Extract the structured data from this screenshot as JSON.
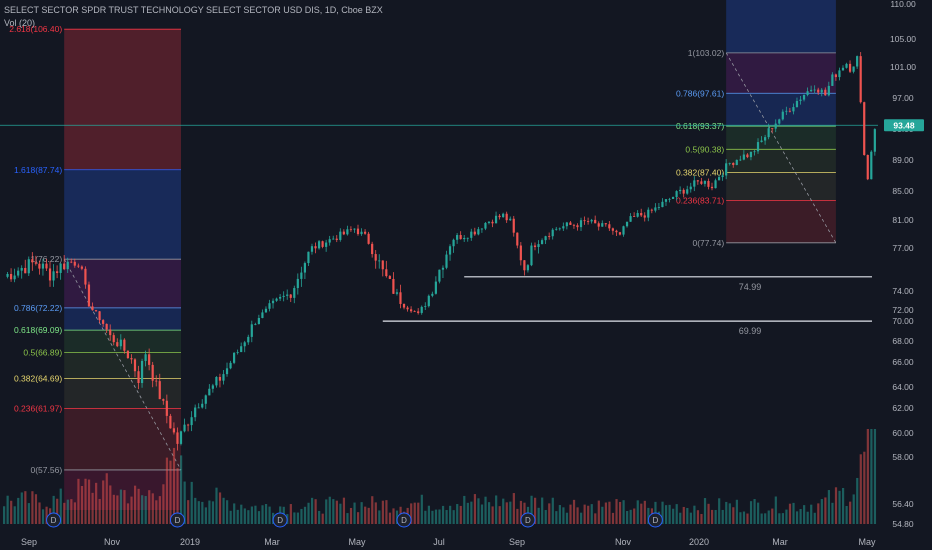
{
  "header": {
    "title": "SELECT SECTOR SPDR TRUST TECHNOLOGY SELECT SECTOR USD DIS, 1D, Cboe BZX",
    "volume_label": "Vol (20)"
  },
  "colors": {
    "background": "#131722",
    "up": "#26a69a",
    "down": "#ef5350",
    "axis_text": "#b2b5be",
    "price_line": "#26a69a"
  },
  "last_price_label": "93.48",
  "chart_data": {
    "type": "candlestick",
    "x_tick_labels": [
      "Sep",
      "Nov",
      "2019",
      "Mar",
      "May",
      "Jul",
      "Sep",
      "Nov",
      "2020",
      "Mar",
      "May"
    ],
    "y_tick_labels": [
      "110.00",
      "105.00",
      "101.00",
      "97.00",
      "93.00",
      "89.00",
      "85.00",
      "81.00",
      "77.00",
      "74.00",
      "72.00",
      "70.00",
      "68.00",
      "66.00",
      "64.00",
      "62.00",
      "60.00",
      "58.00",
      "56.40",
      "54.80"
    ],
    "y_ticks": [
      110,
      105,
      101,
      97,
      93,
      89,
      85,
      81,
      77,
      74,
      72,
      70,
      68,
      66,
      64,
      62,
      60,
      58,
      56.4,
      54.8
    ],
    "close_path": [
      [
        0,
        75.0
      ],
      [
        5,
        75.6
      ],
      [
        9,
        76.0
      ],
      [
        13,
        75.2
      ],
      [
        17,
        75.9
      ],
      [
        21,
        76.2
      ],
      [
        24,
        72.8
      ],
      [
        27,
        70.5
      ],
      [
        30,
        68.4
      ],
      [
        33,
        67.6
      ],
      [
        36,
        66.2
      ],
      [
        38,
        64.7
      ],
      [
        40,
        66.9
      ],
      [
        43,
        64.0
      ],
      [
        46,
        61.4
      ],
      [
        49,
        59.2
      ],
      [
        51,
        60.5
      ],
      [
        54,
        62.1
      ],
      [
        57,
        63.3
      ],
      [
        60,
        64.3
      ],
      [
        63,
        65.5
      ],
      [
        66,
        67.0
      ],
      [
        69,
        68.7
      ],
      [
        72,
        70.8
      ],
      [
        75,
        72.2
      ],
      [
        78,
        73.1
      ],
      [
        81,
        73.8
      ],
      [
        84,
        75.6
      ],
      [
        87,
        77.0
      ],
      [
        90,
        77.7
      ],
      [
        93,
        78.4
      ],
      [
        96,
        79.0
      ],
      [
        99,
        79.8
      ],
      [
        102,
        78.6
      ],
      [
        104,
        77.1
      ],
      [
        107,
        75.3
      ],
      [
        110,
        74.0
      ],
      [
        112,
        73.0
      ],
      [
        115,
        72.3
      ],
      [
        117,
        71.1
      ],
      [
        119,
        72.8
      ],
      [
        122,
        74.9
      ],
      [
        125,
        76.7
      ],
      [
        127,
        78.4
      ],
      [
        130,
        78.8
      ],
      [
        133,
        79.4
      ],
      [
        136,
        80.6
      ],
      [
        139,
        81.3
      ],
      [
        141,
        81.6
      ],
      [
        143,
        80.7
      ],
      [
        145,
        77.2
      ],
      [
        147,
        75.6
      ],
      [
        150,
        77.6
      ],
      [
        153,
        78.9
      ],
      [
        156,
        79.8
      ],
      [
        159,
        80.2
      ],
      [
        162,
        80.4
      ],
      [
        165,
        80.8
      ],
      [
        168,
        80.1
      ],
      [
        171,
        79.9
      ],
      [
        174,
        78.6
      ],
      [
        176,
        80.7
      ],
      [
        179,
        81.6
      ],
      [
        182,
        81.9
      ],
      [
        185,
        82.9
      ],
      [
        188,
        83.9
      ],
      [
        191,
        84.9
      ],
      [
        194,
        85.6
      ],
      [
        197,
        86.3
      ],
      [
        200,
        85.7
      ],
      [
        202,
        87.0
      ],
      [
        205,
        88.6
      ],
      [
        208,
        89.4
      ],
      [
        211,
        89.8
      ],
      [
        214,
        91.4
      ],
      [
        217,
        93.4
      ],
      [
        220,
        94.8
      ],
      [
        223,
        96.2
      ],
      [
        226,
        97.5
      ],
      [
        229,
        98.6
      ],
      [
        232,
        97.4
      ],
      [
        234,
        99.6
      ],
      [
        237,
        101.2
      ],
      [
        240,
        102.3
      ],
      [
        241,
        101.8
      ],
      [
        242,
        95.3
      ],
      [
        243,
        91.2
      ],
      [
        244,
        86.4
      ],
      [
        245,
        90.8
      ],
      [
        246,
        93.5
      ]
    ],
    "volume_profile": [
      [
        0,
        0.3
      ],
      [
        15,
        0.3
      ],
      [
        25,
        0.5
      ],
      [
        40,
        0.35
      ],
      [
        49,
        0.75
      ],
      [
        53,
        0.4
      ],
      [
        70,
        0.22
      ],
      [
        130,
        0.28
      ],
      [
        145,
        0.3
      ],
      [
        175,
        0.22
      ],
      [
        230,
        0.25
      ],
      [
        240,
        0.45
      ],
      [
        244,
        1.0
      ],
      [
        246,
        0.9
      ]
    ],
    "dividend_marker": "D",
    "dividends_x": [
      14,
      49,
      78,
      113,
      148,
      184
    ],
    "fib_retracements": [
      {
        "x_start": 17,
        "x_end": 50,
        "levels": [
          {
            "label": "2.618(106.40)",
            "value": 106.4,
            "color": "#f23645"
          },
          {
            "label": "1.618(87.74)",
            "value": 87.74,
            "color": "#2962ff"
          },
          {
            "label": "1(76.22)",
            "value": 76.22,
            "color": "#9598a1"
          },
          {
            "label": "0.786(72.22)",
            "value": 72.22,
            "color": "#5b9cf6"
          },
          {
            "label": "0.618(69.09)",
            "value": 69.09,
            "color": "#7ee787"
          },
          {
            "label": "0.5(66.89)",
            "value": 66.89,
            "color": "#8bc34a"
          },
          {
            "label": "0.382(64.69)",
            "value": 64.69,
            "color": "#e6d66e"
          },
          {
            "label": "0.236(61.97)",
            "value": 61.97,
            "color": "#f23645"
          },
          {
            "label": "0(57.56)",
            "value": 57.56,
            "color": "#9598a1"
          }
        ]
      },
      {
        "x_start": 204,
        "x_end": 235,
        "levels": [
          {
            "label": "1(103.02)",
            "value": 103.02,
            "color": "#9598a1"
          },
          {
            "label": "0.786(97.61)",
            "value": 97.61,
            "color": "#5b9cf6"
          },
          {
            "label": "0.618(93.37)",
            "value": 93.37,
            "color": "#7ee787"
          },
          {
            "label": "0.5(90.38)",
            "value": 90.38,
            "color": "#8bc34a"
          },
          {
            "label": "0.382(87.40)",
            "value": 87.4,
            "color": "#e6d66e"
          },
          {
            "label": "0.236(83.71)",
            "value": 83.71,
            "color": "#f23645"
          },
          {
            "label": "0(77.74)",
            "value": 77.74,
            "color": "#9598a1"
          }
        ]
      }
    ],
    "horizontal_lines": [
      {
        "value": 74.99,
        "label": "74.99",
        "x_start": 130
      },
      {
        "value": 69.99,
        "label": "69.99",
        "x_start": 107
      }
    ],
    "last_price": 93.48
  }
}
